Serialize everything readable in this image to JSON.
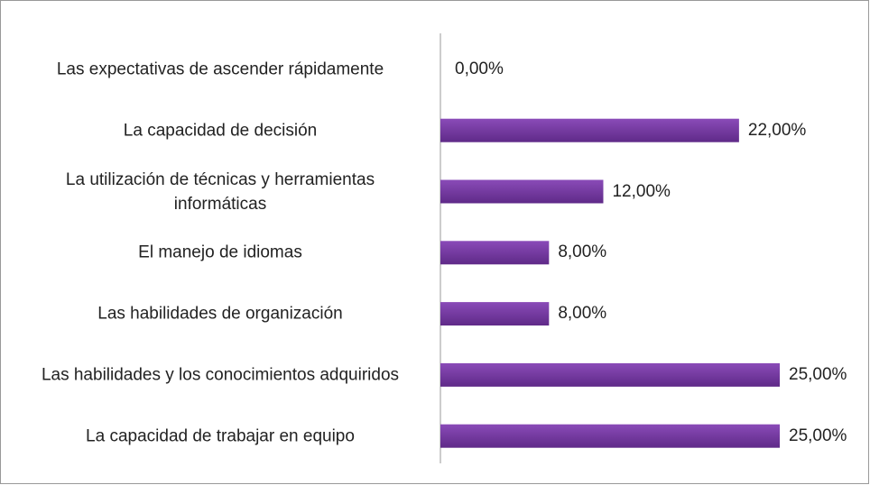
{
  "chart_data": {
    "type": "bar",
    "orientation": "horizontal",
    "categories": [
      "Las expectativas de ascender rápidamente",
      "La capacidad de decisión",
      "La utilización de técnicas y herramientas informáticas",
      "El manejo de idiomas",
      "Las habilidades de organización",
      "Las habilidades y los conocimientos adquiridos",
      "La capacidad de trabajar en equipo"
    ],
    "values": [
      0,
      22,
      12,
      8,
      8,
      25,
      25
    ],
    "value_labels": [
      "0,00%",
      "22,00%",
      "12,00%",
      "8,00%",
      "8,00%",
      "25,00%",
      "25,00%"
    ],
    "color": "#7434a3"
  }
}
